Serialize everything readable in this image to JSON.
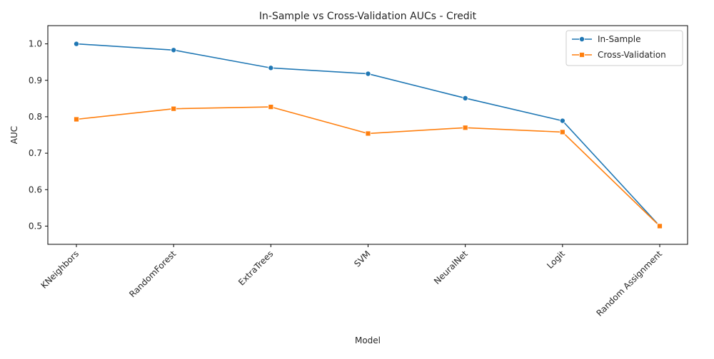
{
  "chart_data": {
    "type": "line",
    "title": "In-Sample vs Cross-Validation AUCs - Credit",
    "xlabel": "Model",
    "ylabel": "AUC",
    "categories": [
      "KNeighbors",
      "RandomForest",
      "ExtraTrees",
      "SVM",
      "NeuralNet",
      "Logit",
      "Random Assignment"
    ],
    "ylim": [
      0.45,
      1.05
    ],
    "yticks": [
      "0.5",
      "0.6",
      "0.7",
      "0.8",
      "0.9",
      "1.0"
    ],
    "legend_position": "top-right",
    "grid": false,
    "series": [
      {
        "name": "In-Sample",
        "values": [
          1.0,
          0.983,
          0.934,
          0.918,
          0.851,
          0.789,
          0.5
        ],
        "color": "#1f77b4",
        "marker": "circle"
      },
      {
        "name": "Cross-Validation",
        "values": [
          0.793,
          0.822,
          0.827,
          0.754,
          0.77,
          0.758,
          0.5
        ],
        "color": "#ff7f0e",
        "marker": "square"
      }
    ]
  }
}
